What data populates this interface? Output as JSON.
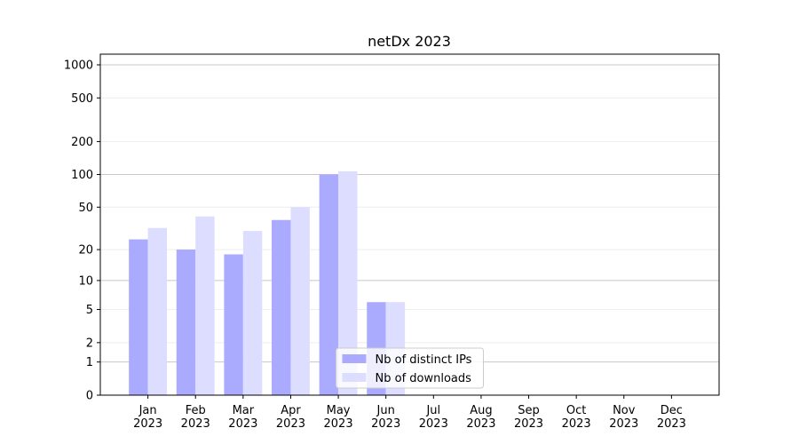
{
  "chart_data": {
    "type": "bar",
    "title": "netDx 2023",
    "categories": [
      "Jan\n2023",
      "Feb\n2023",
      "Mar\n2023",
      "Apr\n2023",
      "May\n2023",
      "Jun\n2023",
      "Jul\n2023",
      "Aug\n2023",
      "Sep\n2023",
      "Oct\n2023",
      "Nov\n2023",
      "Dec\n2023"
    ],
    "series": [
      {
        "name": "Nb of distinct IPs",
        "color": "#aaaaff",
        "values": [
          25,
          20,
          18,
          38,
          100,
          6,
          null,
          null,
          null,
          null,
          null,
          null
        ]
      },
      {
        "name": "Nb of downloads",
        "color": "#ddddff",
        "values": [
          32,
          41,
          30,
          50,
          107,
          6,
          null,
          null,
          null,
          null,
          null,
          null
        ]
      }
    ],
    "yscale": "log1p",
    "ylim": [
      0,
      1250
    ],
    "yticks": [
      0,
      1,
      2,
      5,
      10,
      20,
      50,
      100,
      200,
      500,
      1000
    ],
    "grid": true,
    "legend": "lower center"
  }
}
